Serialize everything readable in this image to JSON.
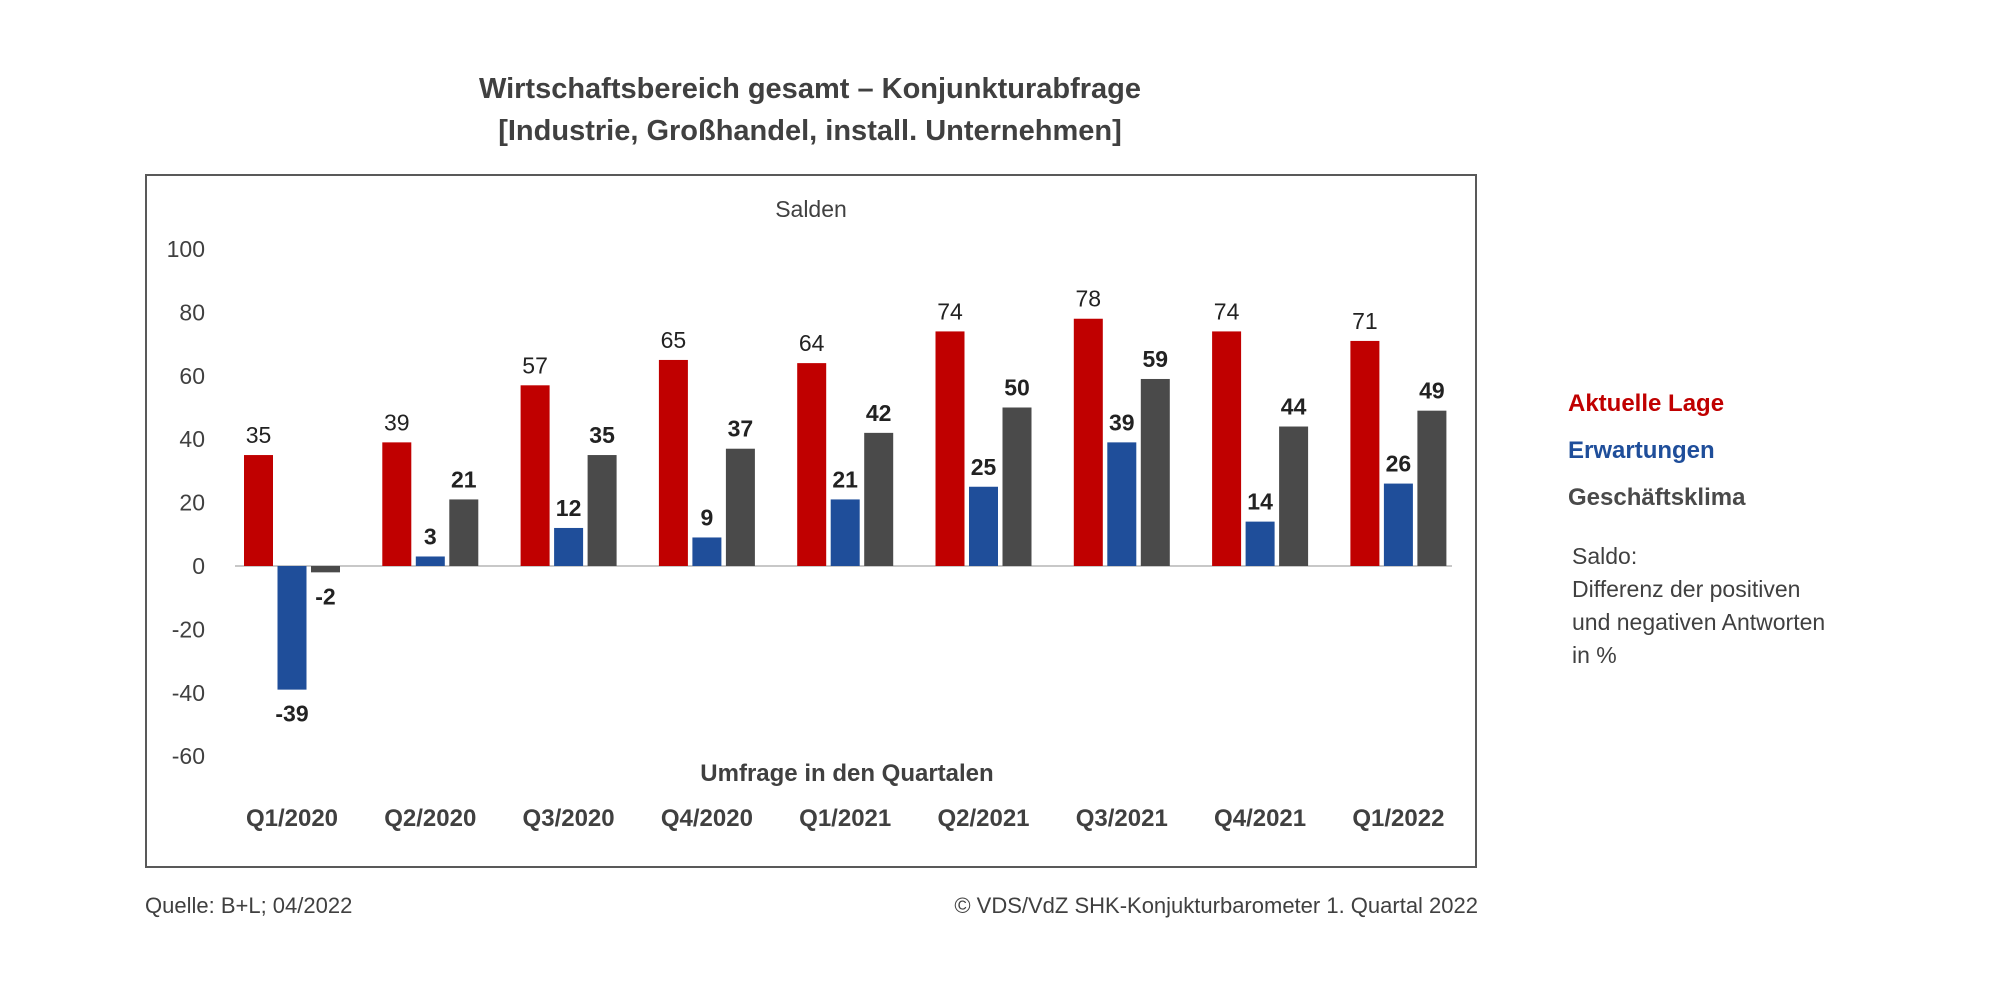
{
  "chart_data": {
    "type": "bar",
    "title_lines": [
      "Wirtschaftsbereich gesamt – Konjunkturabfrage",
      "[Industrie, Großhandel, install. Unternehmen]"
    ],
    "subtitle": "Salden",
    "xlabel": "Umfrage in den Quartalen",
    "ylabel": "",
    "ylim": [
      -60,
      100
    ],
    "yticks": [
      100,
      80,
      60,
      40,
      20,
      0,
      -20,
      -40,
      -60
    ],
    "grid": false,
    "legend_position": "right",
    "categories": [
      "Q1/2020",
      "Q2/2020",
      "Q3/2020",
      "Q4/2020",
      "Q1/2021",
      "Q2/2021",
      "Q3/2021",
      "Q4/2021",
      "Q1/2022"
    ],
    "series": [
      {
        "name": "Aktuelle Lage",
        "color": "#c00000",
        "values": [
          35,
          39,
          57,
          65,
          64,
          74,
          78,
          74,
          71
        ],
        "label_bold": false
      },
      {
        "name": "Erwartungen",
        "color": "#1f4e9a",
        "values": [
          -39,
          3,
          12,
          9,
          21,
          25,
          39,
          14,
          26
        ],
        "label_bold": true
      },
      {
        "name": "Geschäftsklima",
        "color": "#4a4a4a",
        "values": [
          -2,
          21,
          35,
          37,
          42,
          50,
          59,
          44,
          49
        ],
        "label_bold": true
      }
    ]
  },
  "note": {
    "lines": [
      "Saldo:",
      "Differenz der positiven",
      "und negativen Antworten",
      "in %"
    ]
  },
  "footer": {
    "source": "Quelle: B+L; 04/2022",
    "copyright": "© VDS/VdZ SHK-Konjukturbarometer 1. Quartal 2022"
  }
}
